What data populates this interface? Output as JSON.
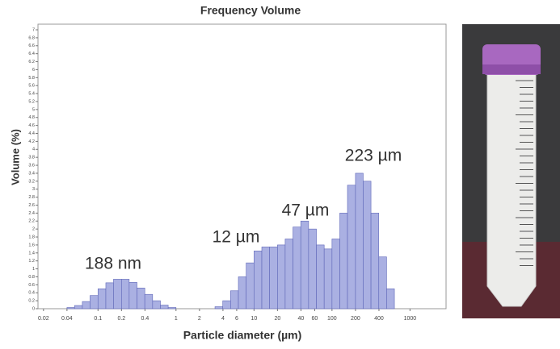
{
  "chart_data": {
    "type": "histogram",
    "title": "Frequency Volume",
    "x_label": "Particle diameter (µm)",
    "y_label": "Volume (%)",
    "log_x": true,
    "color": "#aab0e2",
    "edge_color": "#5f67b8",
    "bins": [
      0.04,
      0.05,
      0.063,
      0.079,
      0.1,
      0.126,
      0.158,
      0.2,
      0.251,
      0.316,
      0.398,
      0.501,
      0.631,
      0.794,
      1,
      1.26,
      1.58,
      2,
      2.51,
      3.16,
      3.98,
      5.01,
      6.31,
      7.94,
      10,
      12.6,
      15.8,
      20,
      25.1,
      31.6,
      39.8,
      50.1,
      63.1,
      79.4,
      100,
      126,
      158,
      200,
      251,
      316,
      398,
      501,
      631
    ],
    "values": [
      0.03,
      0.08,
      0.18,
      0.33,
      0.5,
      0.65,
      0.74,
      0.74,
      0.66,
      0.52,
      0.36,
      0.2,
      0.09,
      0.03,
      0,
      0,
      0,
      0,
      0,
      0.05,
      0.2,
      0.45,
      0.8,
      1.15,
      1.45,
      1.55,
      1.55,
      1.6,
      1.75,
      2.05,
      2.2,
      2.0,
      1.6,
      1.5,
      1.75,
      2.4,
      3.1,
      3.4,
      3.2,
      2.4,
      1.3,
      0.5
    ],
    "xlim": [
      0.017,
      2900
    ],
    "xticks": [
      0.02,
      0.04,
      0.1,
      0.2,
      0.4,
      1,
      2,
      4,
      6,
      10,
      20,
      40,
      60,
      100,
      200,
      400,
      1000
    ],
    "ylim": [
      0,
      7
    ],
    "yticks": [
      0,
      0.2,
      0.4,
      0.6,
      0.8,
      1,
      1.2,
      1.4,
      1.6,
      1.8,
      2,
      2.2,
      2.4,
      2.6,
      2.8,
      3,
      3.2,
      3.4,
      3.6,
      3.8,
      4,
      4.2,
      4.4,
      4.6,
      4.8,
      5,
      5.2,
      5.4,
      5.6,
      5.8,
      6,
      6.2,
      6.4,
      6.6,
      6.8,
      7
    ],
    "annotations": [
      "188 nm",
      "12 µm",
      "47 µm",
      "223 µm"
    ]
  }
}
